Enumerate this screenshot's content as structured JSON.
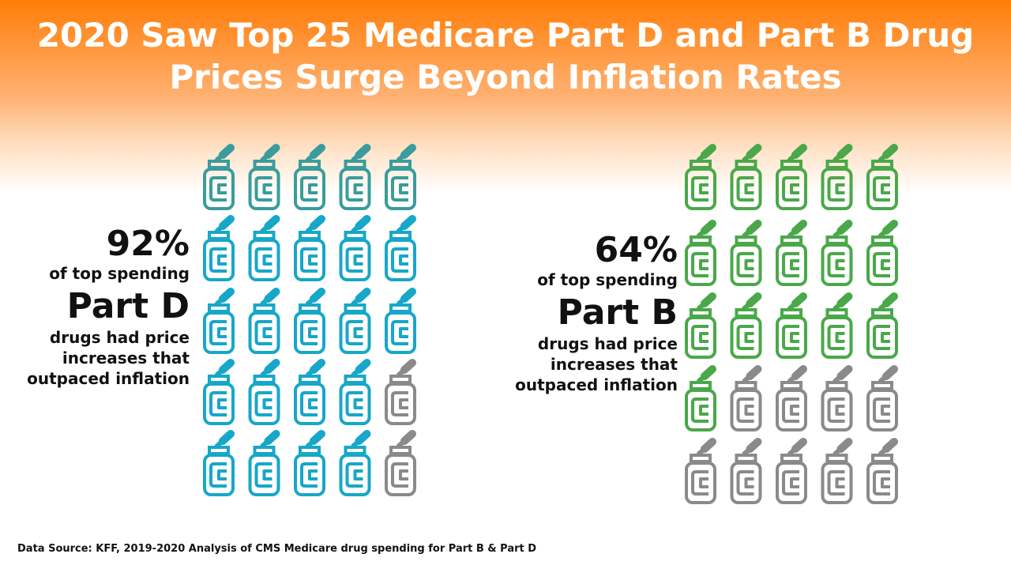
{
  "title": {
    "line1": "2020 Saw Top 25 Medicare Part D and Part B Drug",
    "line2": "Prices Surge Beyond Inflation Rates"
  },
  "colors": {
    "part_d": "#17a7c8",
    "part_d_top_row": "#3a9c9c",
    "part_b": "#4aa84a",
    "other": "#8a8a8a",
    "header_orange": "#ff7d08"
  },
  "icon_name": "medicine-bottle-icon",
  "panels": {
    "part_d": {
      "percent": "92%",
      "subtitle": "of top spending",
      "part": "Part D",
      "line1": "drugs had price",
      "line2": "increases that",
      "line3": "outpaced inflation"
    },
    "part_b": {
      "percent": "64%",
      "subtitle": "of top spending",
      "part": "Part B",
      "line1": "drugs had price",
      "line2": "increases that",
      "line3": "outpaced inflation"
    }
  },
  "source": "Data Source: KFF, 2019-2020 Analysis of CMS Medicare drug spending for Part B & Part D",
  "chart_data": [
    {
      "type": "pictograph",
      "label": "Part D",
      "total_icons": 25,
      "highlighted_icons": 23,
      "percent": 92,
      "grid": {
        "rows": 5,
        "cols": 5
      },
      "fill_order": "column-major"
    },
    {
      "type": "pictograph",
      "label": "Part B",
      "total_icons": 25,
      "highlighted_icons": 16,
      "percent": 64,
      "grid": {
        "rows": 5,
        "cols": 5
      },
      "fill_order": "row-major"
    }
  ]
}
